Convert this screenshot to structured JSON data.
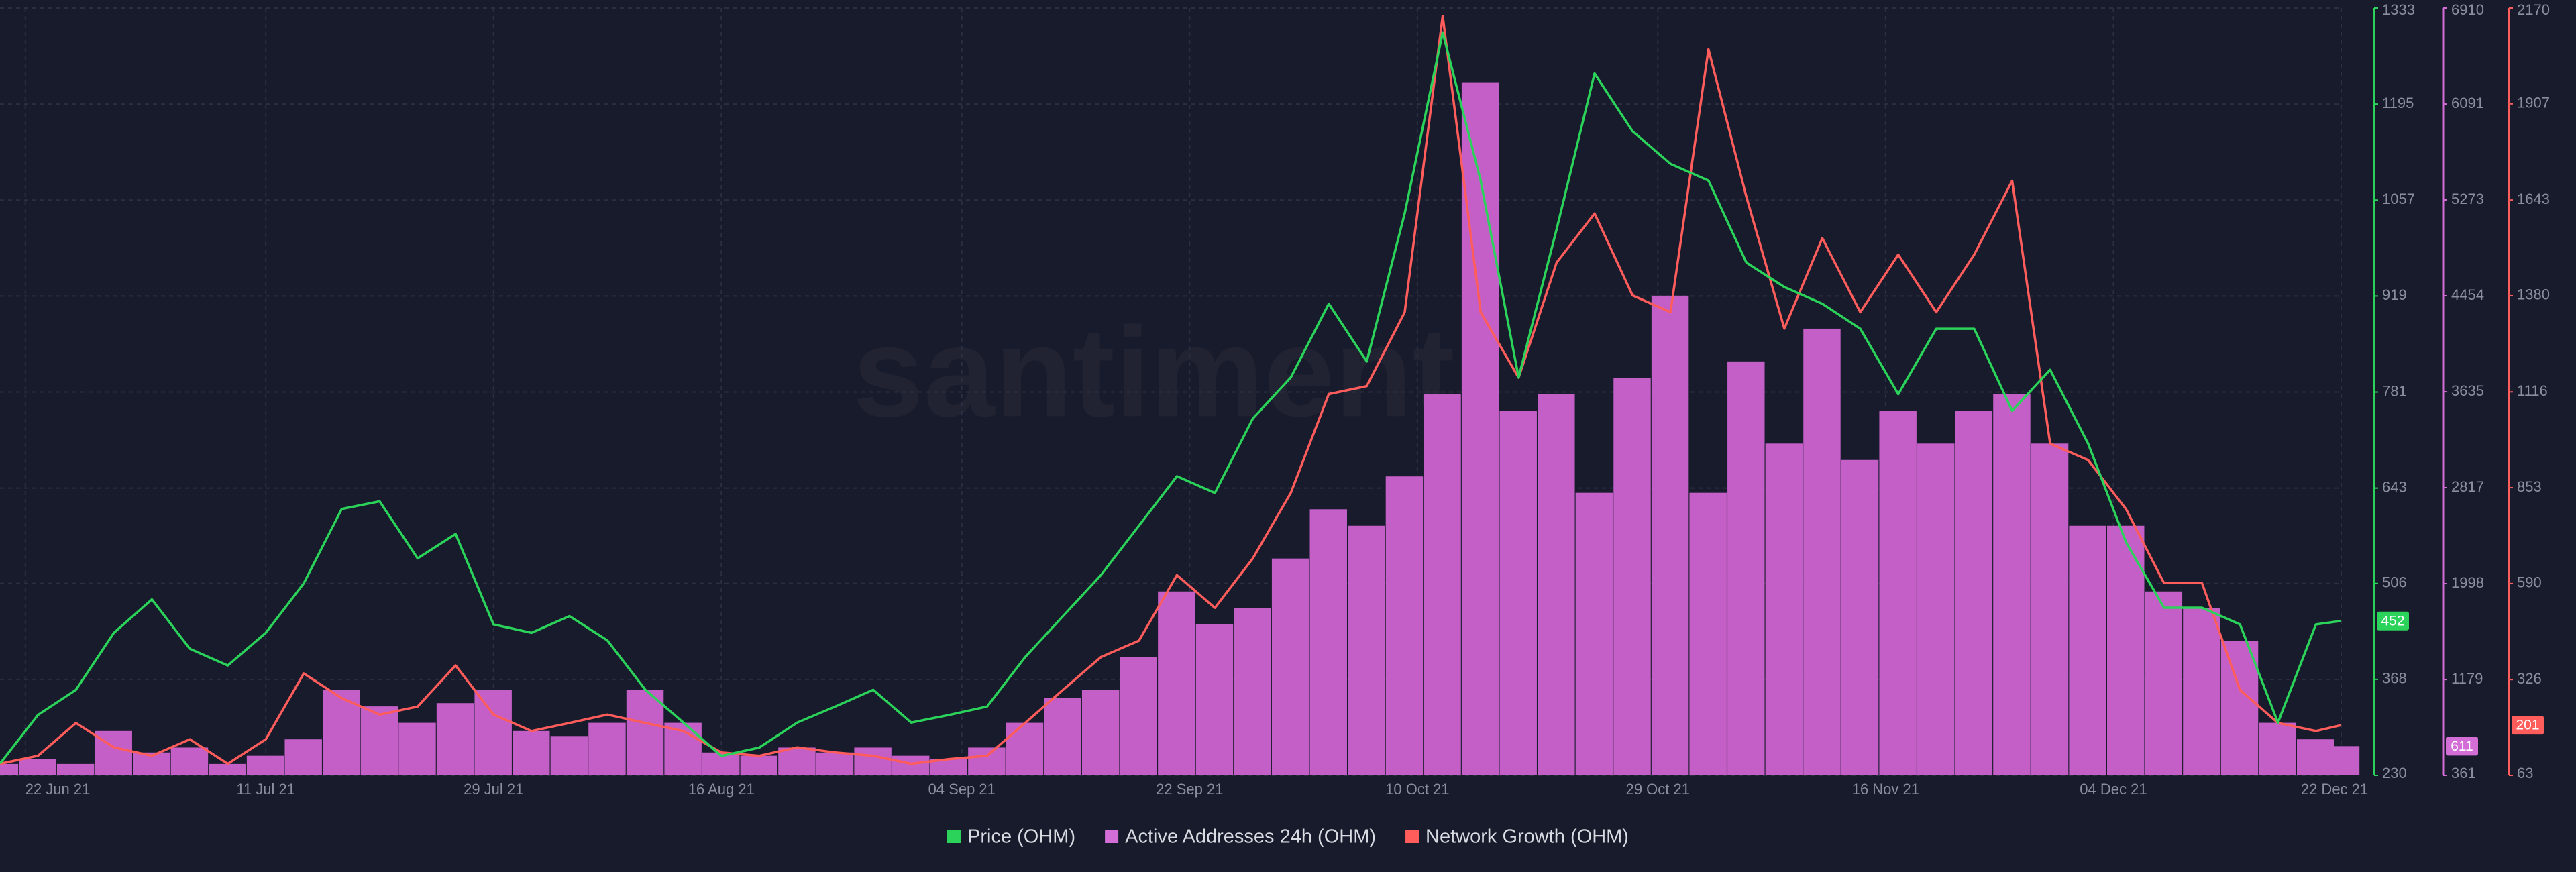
{
  "chart_data": {
    "type": "multi-axis",
    "watermark": "santiment",
    "x": [
      "2021-06-20",
      "2021-06-23",
      "2021-06-26",
      "2021-06-29",
      "2021-07-02",
      "2021-07-05",
      "2021-07-08",
      "2021-07-11",
      "2021-07-14",
      "2021-07-17",
      "2021-07-20",
      "2021-07-23",
      "2021-07-26",
      "2021-07-29",
      "2021-08-01",
      "2021-08-04",
      "2021-08-07",
      "2021-08-10",
      "2021-08-13",
      "2021-08-16",
      "2021-08-19",
      "2021-08-22",
      "2021-08-25",
      "2021-08-28",
      "2021-08-31",
      "2021-09-03",
      "2021-09-06",
      "2021-09-09",
      "2021-09-12",
      "2021-09-15",
      "2021-09-18",
      "2021-09-21",
      "2021-09-24",
      "2021-09-27",
      "2021-09-30",
      "2021-10-03",
      "2021-10-06",
      "2021-10-09",
      "2021-10-12",
      "2021-10-15",
      "2021-10-18",
      "2021-10-21",
      "2021-10-24",
      "2021-10-27",
      "2021-10-30",
      "2021-11-02",
      "2021-11-05",
      "2021-11-08",
      "2021-11-11",
      "2021-11-14",
      "2021-11-17",
      "2021-11-20",
      "2021-11-23",
      "2021-11-26",
      "2021-11-29",
      "2021-12-02",
      "2021-12-05",
      "2021-12-08",
      "2021-12-11",
      "2021-12-14",
      "2021-12-17",
      "2021-12-20",
      "2021-12-22"
    ],
    "xlim": [
      "2021-06-20",
      "2021-12-22"
    ],
    "xticks": [
      {
        "value": "2021-06-22",
        "label": "22 Jun 21"
      },
      {
        "value": "2021-07-11",
        "label": "11 Jul 21"
      },
      {
        "value": "2021-07-29",
        "label": "29 Jul 21"
      },
      {
        "value": "2021-08-16",
        "label": "16 Aug 21"
      },
      {
        "value": "2021-09-04",
        "label": "04 Sep 21"
      },
      {
        "value": "2021-09-22",
        "label": "22 Sep 21"
      },
      {
        "value": "2021-10-10",
        "label": "10 Oct 21"
      },
      {
        "value": "2021-10-29",
        "label": "29 Oct 21"
      },
      {
        "value": "2021-11-16",
        "label": "16 Nov 21"
      },
      {
        "value": "2021-12-04",
        "label": "04 Dec 21"
      },
      {
        "value": "2021-12-22",
        "label": "22 Dec 21"
      }
    ],
    "ylim": [
      230,
      1333
    ],
    "yticks": [
      230,
      368,
      506,
      643,
      781,
      919,
      1057,
      1195,
      1333
    ],
    "y2lim": [
      361,
      6910
    ],
    "y2ticks": [
      361,
      1179,
      1998,
      2817,
      3635,
      4454,
      5273,
      6091,
      6910
    ],
    "y3lim": [
      63,
      2170
    ],
    "y3ticks": [
      63,
      326,
      590,
      853,
      1116,
      1380,
      1643,
      1907,
      2170
    ],
    "grid": true,
    "series": [
      {
        "name": "Price (OHM)",
        "color": "#2bd35a",
        "axis": "y",
        "kind": "line",
        "values": [
          247,
          317,
          353,
          435,
          483,
          412,
          388,
          435,
          506,
          613,
          624,
          542,
          577,
          447,
          435,
          459,
          424,
          353,
          306,
          258,
          270,
          306,
          329,
          353,
          306,
          317,
          329,
          400,
          459,
          518,
          589,
          660,
          636,
          743,
          802,
          908,
          825,
          1038,
          1298,
          1085,
          802,
          1015,
          1239,
          1156,
          1109,
          1085,
          967,
          932,
          908,
          872,
          778,
          872,
          872,
          754,
          813,
          707,
          565,
          471,
          471,
          447,
          306,
          447,
          452
        ]
      },
      {
        "name": "Active Addresses 24h (OHM)",
        "color": "#d36ed6",
        "axis": "y2",
        "kind": "bar",
        "values": [
          459,
          501,
          459,
          740,
          557,
          599,
          459,
          529,
          669,
          1090,
          950,
          810,
          978,
          1090,
          740,
          697,
          810,
          1090,
          810,
          557,
          529,
          599,
          557,
          599,
          529,
          501,
          599,
          810,
          1020,
          1090,
          1370,
          1931,
          1651,
          1791,
          2212,
          2632,
          2492,
          2913,
          3614,
          6277,
          3474,
          3614,
          2773,
          3754,
          4455,
          2773,
          3894,
          3193,
          4174,
          3053,
          3474,
          3193,
          3474,
          3614,
          3193,
          2492,
          2492,
          1931,
          1791,
          1511,
          810,
          669,
          611
        ]
      },
      {
        "name": "Network Growth (OHM)",
        "color": "#ff5c5c",
        "axis": "y3",
        "kind": "line",
        "values": [
          95,
          117,
          207,
          140,
          117,
          162,
          95,
          162,
          343,
          275,
          230,
          252,
          365,
          230,
          185,
          207,
          230,
          207,
          185,
          126,
          117,
          140,
          126,
          117,
          95,
          108,
          117,
          207,
          298,
          388,
          433,
          613,
          523,
          659,
          839,
          1110,
          1132,
          1335,
          2148,
          1335,
          1155,
          1471,
          1606,
          1381,
          1335,
          2057,
          1651,
          1290,
          1538,
          1335,
          1493,
          1335,
          1493,
          1696,
          974,
          929,
          794,
          591,
          591,
          298,
          207,
          185,
          201
        ]
      }
    ]
  }
}
